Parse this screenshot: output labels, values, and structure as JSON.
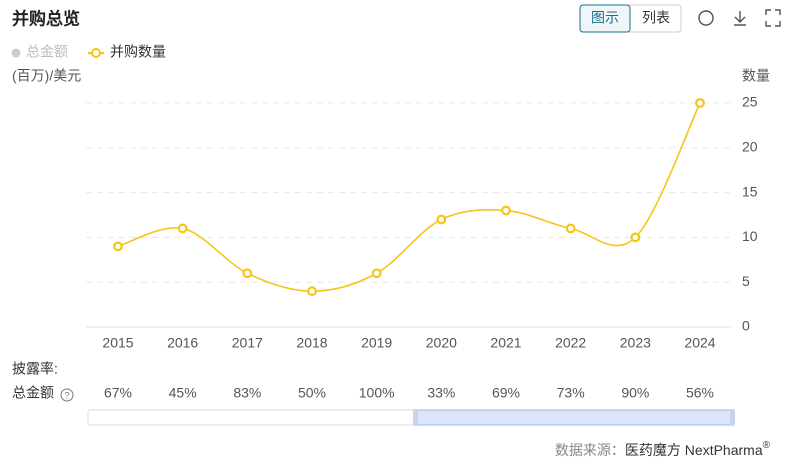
{
  "title": "并购总览",
  "view_buttons": [
    "图示",
    "列表"
  ],
  "legend_inactive": "总金额",
  "left_axis_label": "(百万)/美元",
  "chart_data": {
    "type": "line",
    "categories": [
      "2015",
      "2016",
      "2017",
      "2018",
      "2019",
      "2020",
      "2021",
      "2022",
      "2023",
      "2024"
    ],
    "series": [
      {
        "name": "并购数量",
        "color": "#f5c518",
        "axis": "y2",
        "values": [
          9,
          11,
          6,
          4,
          6,
          12,
          13,
          11,
          10,
          25
        ]
      }
    ],
    "y2_label": "数量",
    "y2lim": [
      0,
      25
    ],
    "y2ticks": [
      0,
      5,
      10,
      15,
      20,
      25
    ],
    "grid": true
  },
  "disclosure": {
    "label": "披露率:",
    "row_label": "总金额",
    "values": [
      67,
      45,
      83,
      50,
      100,
      33,
      69,
      73,
      90,
      56
    ],
    "value_labels": [
      "67%",
      "45%",
      "83%",
      "50%",
      "100%",
      "33%",
      "69%",
      "73%",
      "90%",
      "56%"
    ]
  },
  "footer": {
    "source": "数据来源：",
    "brand": "医药魔方 NextPharma",
    "mark": "®"
  }
}
